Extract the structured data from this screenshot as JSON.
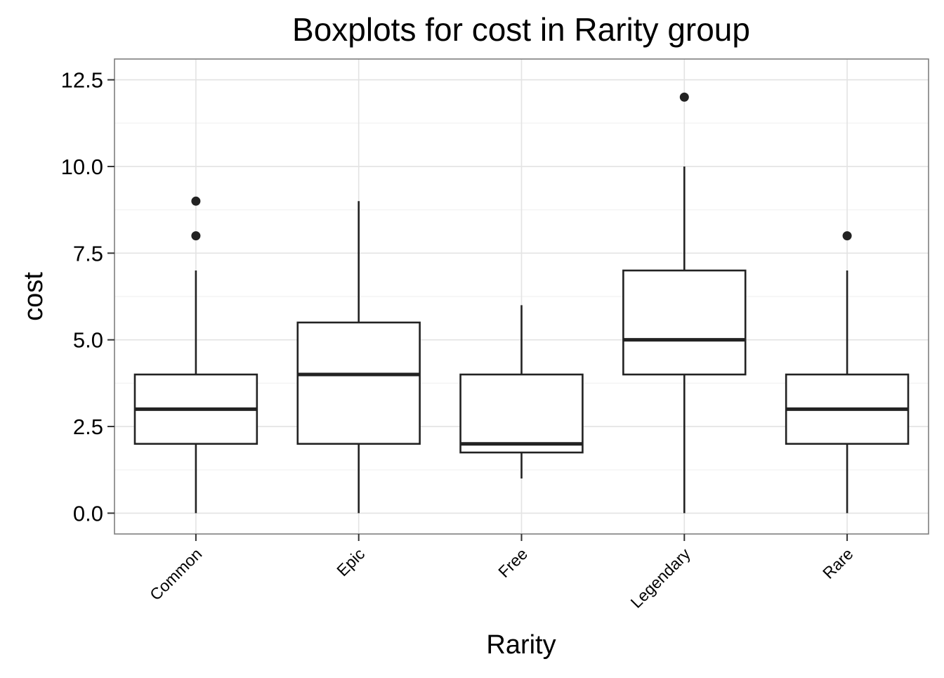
{
  "chart_data": {
    "type": "boxplot",
    "title": "Boxplots for cost in Rarity group",
    "xlabel": "Rarity",
    "ylabel": "cost",
    "ylim": [
      -0.6,
      13.1
    ],
    "yticks": [
      "0.0",
      "2.5",
      "5.0",
      "7.5",
      "10.0",
      "12.5"
    ],
    "ytick_values": [
      0,
      2.5,
      5,
      7.5,
      10,
      12.5
    ],
    "grid": true,
    "categories": [
      "Common",
      "Epic",
      "Free",
      "Legendary",
      "Rare"
    ],
    "boxes": [
      {
        "category": "Common",
        "whisker_low": 0,
        "q1": 2,
        "median": 3,
        "q3": 4,
        "whisker_high": 7,
        "outliers": [
          8,
          9
        ]
      },
      {
        "category": "Epic",
        "whisker_low": 0,
        "q1": 2,
        "median": 4,
        "q3": 5.5,
        "whisker_high": 9,
        "outliers": []
      },
      {
        "category": "Free",
        "whisker_low": 1,
        "q1": 1.75,
        "median": 2,
        "q3": 4,
        "whisker_high": 6,
        "outliers": []
      },
      {
        "category": "Legendary",
        "whisker_low": 0,
        "q1": 4,
        "median": 5,
        "q3": 7,
        "whisker_high": 10,
        "outliers": [
          12
        ]
      },
      {
        "category": "Rare",
        "whisker_low": 0,
        "q1": 2,
        "median": 3,
        "q3": 4,
        "whisker_high": 7,
        "outliers": [
          8
        ]
      }
    ]
  }
}
